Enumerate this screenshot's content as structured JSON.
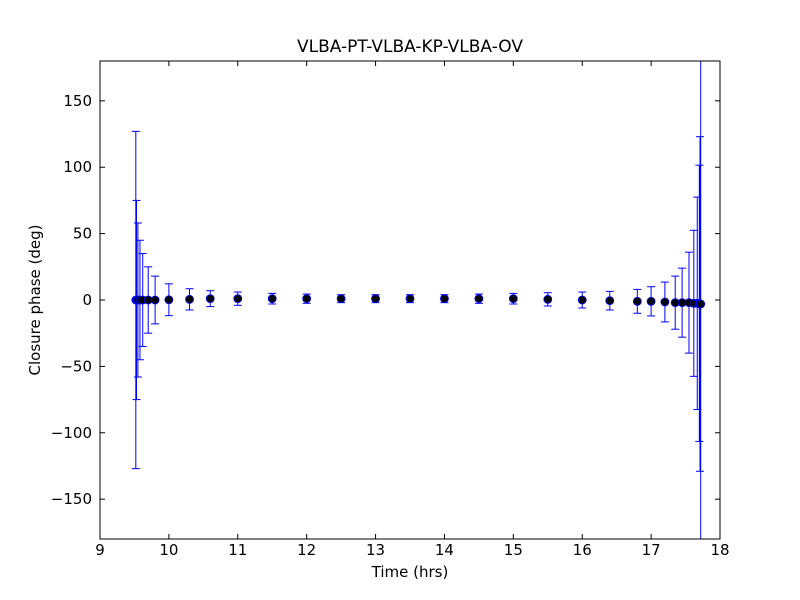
{
  "chart_data": {
    "type": "errorbar",
    "title": "VLBA-PT-VLBA-KP-VLBA-OV",
    "x_label": "Time (hrs)",
    "y_label": "Closure phase (deg)",
    "x": [
      9.52,
      9.53,
      9.55,
      9.58,
      9.62,
      9.7,
      9.8,
      10.0,
      10.3,
      10.6,
      11.0,
      11.5,
      12.0,
      12.5,
      13.0,
      13.5,
      14.0,
      14.5,
      15.0,
      15.5,
      16.0,
      16.4,
      16.8,
      17.0,
      17.2,
      17.35,
      17.45,
      17.55,
      17.62,
      17.67,
      17.7,
      17.71,
      17.72
    ],
    "values": [
      0,
      0,
      0,
      0,
      0,
      0,
      0,
      0.2,
      0.5,
      1,
      1,
      1,
      1,
      1,
      1,
      1,
      1,
      1,
      1,
      0.5,
      0,
      -0.5,
      -1,
      -1,
      -1.5,
      -2,
      -2,
      -2,
      -2.5,
      -2.5,
      -2.5,
      -3,
      -3
    ],
    "errors": [
      127,
      75,
      58,
      45,
      35,
      25,
      18,
      12,
      8,
      6,
      5,
      4,
      3.5,
      3,
      3,
      3,
      3,
      3.5,
      4,
      5,
      6,
      7,
      9,
      11,
      15,
      20,
      26,
      38,
      55,
      80,
      104,
      126,
      200
    ],
    "error_color": "#0000ff",
    "marker_color": "#000000",
    "marker_edge": "#0000ff",
    "xlim": [
      9,
      18
    ],
    "ylim": [
      -180,
      180
    ],
    "xticks": [
      9,
      10,
      11,
      12,
      13,
      14,
      15,
      16,
      17,
      18
    ],
    "yticks": [
      {
        "value": -150,
        "label": "−150"
      },
      {
        "value": -100,
        "label": "−100"
      },
      {
        "value": -50,
        "label": "−50"
      },
      0,
      50,
      100,
      150
    ]
  }
}
